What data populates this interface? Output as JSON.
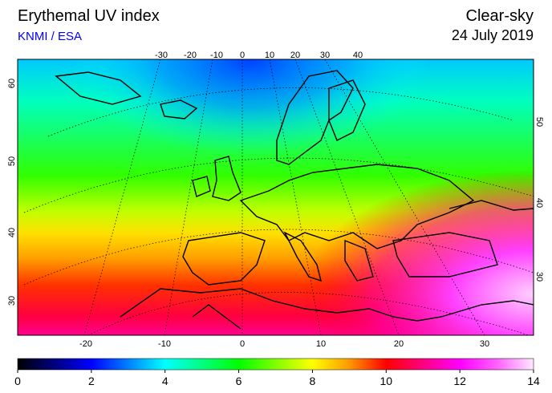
{
  "header": {
    "title": "Erythemal UV index",
    "source": "KNMI / ESA",
    "condition": "Clear-sky",
    "date": "24 July 2019"
  },
  "map": {
    "top_lon_labels": [
      -30,
      -20,
      -10,
      0,
      10,
      20,
      30,
      40
    ],
    "bottom_lon_labels": [
      -20,
      -10,
      0,
      10,
      20,
      30
    ],
    "left_lat_labels": [
      60,
      50,
      40,
      30
    ],
    "right_lat_labels": [
      50,
      40,
      30
    ]
  },
  "colorbar": {
    "min": 0,
    "max": 14,
    "ticks": [
      0,
      2,
      4,
      6,
      8,
      10,
      12,
      14
    ],
    "colors": [
      "#000000",
      "#000080",
      "#0000ff",
      "#0080ff",
      "#00ffff",
      "#00ff80",
      "#00ff00",
      "#80ff00",
      "#ffff00",
      "#ff9900",
      "#ff0000",
      "#ff0080",
      "#ff00ff",
      "#ff60ff",
      "#ffe8ff"
    ]
  }
}
